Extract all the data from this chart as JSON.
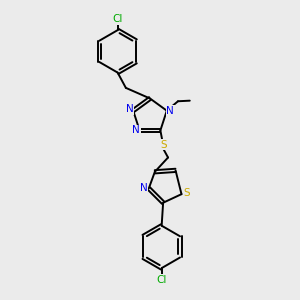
{
  "bg_color": "#ebebeb",
  "bond_color": "#000000",
  "N_color": "#0000ee",
  "S_color": "#ccaa00",
  "Cl_color": "#00aa00",
  "line_width": 1.4,
  "atoms": {
    "N": "N",
    "S": "S",
    "Cl": "Cl"
  }
}
